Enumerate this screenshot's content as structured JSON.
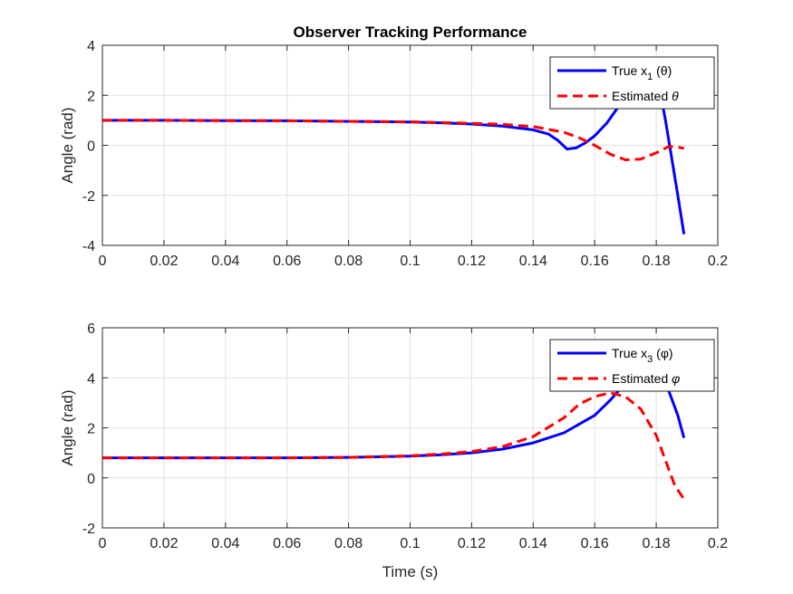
{
  "chart_data": [
    {
      "type": "line",
      "title": "Observer Tracking Performance",
      "xlabel": "",
      "ylabel": "Angle (rad)",
      "xlim": [
        0,
        0.2
      ],
      "ylim": [
        -4,
        4
      ],
      "xticks": [
        "0",
        "0.02",
        "0.04",
        "0.06",
        "0.08",
        "0.1",
        "0.12",
        "0.14",
        "0.16",
        "0.18",
        "0.2"
      ],
      "yticks": [
        "-4",
        "-2",
        "0",
        "2",
        "4"
      ],
      "grid": true,
      "legend_position": "top-right",
      "series": [
        {
          "name": "True x_1 (θ)",
          "legend_main": "True x",
          "legend_sub": "1",
          "legend_tail": " (θ)",
          "color": "#0000ff",
          "style": "solid",
          "points": [
            [
              0,
              1.0
            ],
            [
              0.02,
              1.0
            ],
            [
              0.04,
              0.99
            ],
            [
              0.06,
              0.98
            ],
            [
              0.08,
              0.96
            ],
            [
              0.1,
              0.93
            ],
            [
              0.11,
              0.9
            ],
            [
              0.12,
              0.85
            ],
            [
              0.13,
              0.77
            ],
            [
              0.14,
              0.62
            ],
            [
              0.145,
              0.45
            ],
            [
              0.148,
              0.2
            ],
            [
              0.151,
              -0.15
            ],
            [
              0.154,
              -0.1
            ],
            [
              0.157,
              0.1
            ],
            [
              0.16,
              0.38
            ],
            [
              0.164,
              0.9
            ],
            [
              0.168,
              1.6
            ],
            [
              0.171,
              2.3
            ],
            [
              0.173,
              2.9
            ],
            [
              0.176,
              2.9
            ],
            [
              0.179,
              2.7
            ],
            [
              0.181,
              2.3
            ],
            [
              0.183,
              1.0
            ],
            [
              0.185,
              -0.5
            ],
            [
              0.187,
              -2.0
            ],
            [
              0.189,
              -3.55
            ]
          ]
        },
        {
          "name": "Estimated θ",
          "legend_main": "Estimated ",
          "legend_sub": "",
          "legend_tail": "θ",
          "color": "#ff0000",
          "style": "dashed",
          "points": [
            [
              0,
              1.0
            ],
            [
              0.02,
              1.0
            ],
            [
              0.04,
              0.99
            ],
            [
              0.06,
              0.98
            ],
            [
              0.08,
              0.96
            ],
            [
              0.1,
              0.94
            ],
            [
              0.12,
              0.88
            ],
            [
              0.13,
              0.84
            ],
            [
              0.14,
              0.75
            ],
            [
              0.15,
              0.52
            ],
            [
              0.155,
              0.3
            ],
            [
              0.16,
              0.0
            ],
            [
              0.165,
              -0.35
            ],
            [
              0.17,
              -0.58
            ],
            [
              0.175,
              -0.55
            ],
            [
              0.18,
              -0.3
            ],
            [
              0.184,
              -0.05
            ],
            [
              0.186,
              -0.05
            ],
            [
              0.189,
              -0.12
            ]
          ]
        }
      ]
    },
    {
      "type": "line",
      "title": "",
      "xlabel": "Time (s)",
      "ylabel": "Angle (rad)",
      "xlim": [
        0,
        0.2
      ],
      "ylim": [
        -2,
        6
      ],
      "xticks": [
        "0",
        "0.02",
        "0.04",
        "0.06",
        "0.08",
        "0.1",
        "0.12",
        "0.14",
        "0.16",
        "0.18",
        "0.2"
      ],
      "yticks": [
        "-2",
        "0",
        "2",
        "4",
        "6"
      ],
      "grid": true,
      "legend_position": "top-right",
      "series": [
        {
          "name": "True x_3 (φ)",
          "legend_main": "True x",
          "legend_sub": "3",
          "legend_tail": " (φ)",
          "color": "#0000ff",
          "style": "solid",
          "points": [
            [
              0,
              0.8
            ],
            [
              0.02,
              0.8
            ],
            [
              0.04,
              0.8
            ],
            [
              0.06,
              0.8
            ],
            [
              0.08,
              0.82
            ],
            [
              0.1,
              0.87
            ],
            [
              0.11,
              0.92
            ],
            [
              0.12,
              1.0
            ],
            [
              0.13,
              1.15
            ],
            [
              0.14,
              1.4
            ],
            [
              0.15,
              1.8
            ],
            [
              0.16,
              2.5
            ],
            [
              0.165,
              3.1
            ],
            [
              0.17,
              3.8
            ],
            [
              0.175,
              4.1
            ],
            [
              0.178,
              4.1
            ],
            [
              0.181,
              3.9
            ],
            [
              0.184,
              3.5
            ],
            [
              0.187,
              2.5
            ],
            [
              0.189,
              1.6
            ]
          ]
        },
        {
          "name": "Estimated φ",
          "legend_main": "Estimated ",
          "legend_sub": "",
          "legend_tail": "φ",
          "color": "#ff0000",
          "style": "dashed",
          "points": [
            [
              0,
              0.8
            ],
            [
              0.02,
              0.8
            ],
            [
              0.04,
              0.8
            ],
            [
              0.06,
              0.8
            ],
            [
              0.08,
              0.82
            ],
            [
              0.1,
              0.88
            ],
            [
              0.11,
              0.95
            ],
            [
              0.12,
              1.05
            ],
            [
              0.13,
              1.25
            ],
            [
              0.14,
              1.65
            ],
            [
              0.15,
              2.4
            ],
            [
              0.155,
              2.95
            ],
            [
              0.16,
              3.25
            ],
            [
              0.165,
              3.4
            ],
            [
              0.17,
              3.25
            ],
            [
              0.175,
              2.75
            ],
            [
              0.18,
              1.7
            ],
            [
              0.183,
              0.7
            ],
            [
              0.186,
              -0.3
            ],
            [
              0.189,
              -0.85
            ]
          ]
        }
      ]
    }
  ]
}
